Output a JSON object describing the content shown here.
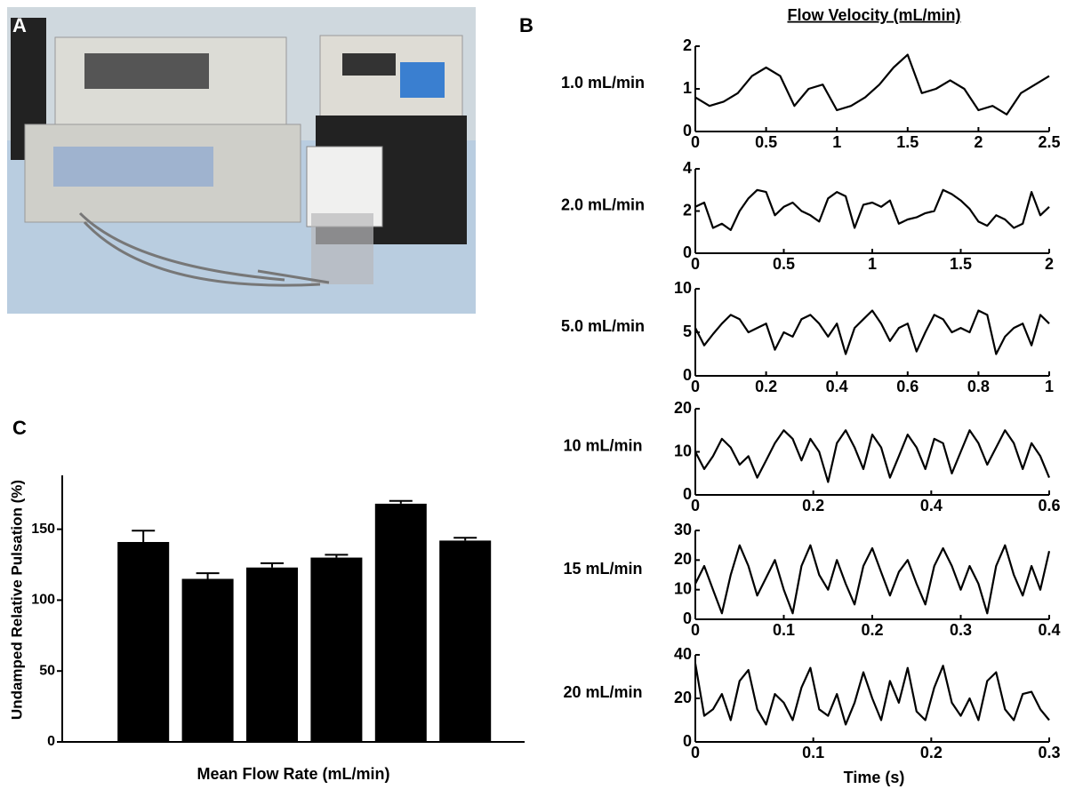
{
  "photo": {
    "panel": "A"
  },
  "chart_data": [
    {
      "type": "bar",
      "panel": "C",
      "ylabel": "Undamped Relative Pulsation (%)",
      "xlabel": "Mean Flow Rate (mL/min)",
      "categories": [
        null,
        null,
        null,
        null,
        null,
        null
      ],
      "values": [
        141,
        115,
        123,
        130,
        168,
        142
      ],
      "errors": [
        8,
        4,
        3,
        2,
        2,
        2
      ],
      "color": "#000000",
      "ylim": [
        0,
        188
      ],
      "yticks": [
        0,
        50,
        100,
        150
      ]
    },
    {
      "type": "line",
      "panel": "B",
      "title": "Flow Velocity (mL/min)",
      "ylabel": "1.0 mL/min",
      "color": "#000000",
      "x": [
        0,
        0.1,
        0.2,
        0.3,
        0.4,
        0.5,
        0.6,
        0.7,
        0.8,
        0.9,
        1,
        1.1,
        1.2,
        1.3,
        1.4,
        1.5,
        1.6,
        1.7,
        1.8,
        1.9,
        2,
        2.1,
        2.2,
        2.3,
        2.4,
        2.5
      ],
      "values": [
        0.8,
        0.6,
        0.7,
        0.9,
        1.3,
        1.5,
        1.3,
        0.6,
        1.0,
        1.1,
        0.5,
        0.6,
        0.8,
        1.1,
        1.5,
        1.8,
        0.9,
        1.0,
        1.2,
        1.0,
        0.5,
        0.6,
        0.4,
        0.9,
        1.1,
        1.3
      ],
      "xlim": [
        0,
        2.5
      ],
      "xticks": [
        0,
        0.5,
        1,
        1.5,
        2,
        2.5
      ],
      "ylim": [
        0,
        2
      ],
      "yticks": [
        0,
        1,
        2
      ]
    },
    {
      "type": "line",
      "ylabel": "2.0 mL/min",
      "color": "#000000",
      "x": [
        0,
        0.05,
        0.1,
        0.15,
        0.2,
        0.25,
        0.3,
        0.35,
        0.4,
        0.45,
        0.5,
        0.55,
        0.6,
        0.65,
        0.7,
        0.75,
        0.8,
        0.85,
        0.9,
        0.95,
        1,
        1.05,
        1.1,
        1.15,
        1.2,
        1.25,
        1.3,
        1.35,
        1.4,
        1.45,
        1.5,
        1.55,
        1.6,
        1.65,
        1.7,
        1.75,
        1.8,
        1.85,
        1.9,
        1.95,
        2
      ],
      "values": [
        2.2,
        2.4,
        1.2,
        1.4,
        1.1,
        2.0,
        2.6,
        3.0,
        2.9,
        1.8,
        2.2,
        2.4,
        2.0,
        1.8,
        1.5,
        2.6,
        2.9,
        2.7,
        1.2,
        2.3,
        2.4,
        2.2,
        2.5,
        1.4,
        1.6,
        1.7,
        1.9,
        2.0,
        3.0,
        2.8,
        2.5,
        2.1,
        1.5,
        1.3,
        1.8,
        1.6,
        1.2,
        1.4,
        2.9,
        1.8,
        2.2
      ],
      "xlim": [
        0,
        2
      ],
      "xticks": [
        0,
        0.5,
        1,
        1.5,
        2
      ],
      "ylim": [
        0,
        4
      ],
      "yticks": [
        0,
        2,
        4
      ]
    },
    {
      "type": "line",
      "ylabel": "5.0 mL/min",
      "color": "#000000",
      "x": [
        0,
        0.025,
        0.05,
        0.075,
        0.1,
        0.125,
        0.15,
        0.175,
        0.2,
        0.225,
        0.25,
        0.275,
        0.3,
        0.325,
        0.35,
        0.375,
        0.4,
        0.425,
        0.45,
        0.475,
        0.5,
        0.525,
        0.55,
        0.575,
        0.6,
        0.625,
        0.65,
        0.675,
        0.7,
        0.725,
        0.75,
        0.775,
        0.8,
        0.825,
        0.85,
        0.875,
        0.9,
        0.925,
        0.95,
        0.975,
        1
      ],
      "values": [
        5.5,
        3.5,
        4.8,
        6.0,
        7.0,
        6.5,
        5.0,
        5.5,
        6.0,
        3.0,
        5.0,
        4.5,
        6.5,
        7.0,
        6.0,
        4.5,
        6.0,
        2.5,
        5.5,
        6.5,
        7.5,
        6.0,
        4.0,
        5.5,
        6.0,
        2.8,
        5.0,
        7.0,
        6.5,
        5.0,
        5.5,
        5.0,
        7.5,
        7.0,
        2.5,
        4.5,
        5.5,
        6.0,
        3.5,
        7.0,
        6.0
      ],
      "xlim": [
        0,
        1
      ],
      "xticks": [
        0,
        0.2,
        0.4,
        0.6,
        0.8,
        1
      ],
      "ylim": [
        0,
        10
      ],
      "yticks": [
        0,
        5,
        10
      ]
    },
    {
      "type": "line",
      "ylabel": "10 mL/min",
      "color": "#000000",
      "x": [
        0,
        0.015,
        0.03,
        0.045,
        0.06,
        0.075,
        0.09,
        0.105,
        0.12,
        0.135,
        0.15,
        0.165,
        0.18,
        0.195,
        0.21,
        0.225,
        0.24,
        0.255,
        0.27,
        0.285,
        0.3,
        0.315,
        0.33,
        0.345,
        0.36,
        0.375,
        0.39,
        0.405,
        0.42,
        0.435,
        0.45,
        0.465,
        0.48,
        0.495,
        0.51,
        0.525,
        0.54,
        0.555,
        0.57,
        0.585,
        0.6
      ],
      "values": [
        10,
        6,
        9,
        13,
        11,
        7,
        9,
        4,
        8,
        12,
        15,
        13,
        8,
        13,
        10,
        3,
        12,
        15,
        11,
        6,
        14,
        11,
        4,
        9,
        14,
        11,
        6,
        13,
        12,
        5,
        10,
        15,
        12,
        7,
        11,
        15,
        12,
        6,
        12,
        9,
        4
      ],
      "xlim": [
        0,
        0.6
      ],
      "xticks": [
        0,
        0.2,
        0.4,
        0.6
      ],
      "ylim": [
        0,
        20
      ],
      "yticks": [
        0,
        10,
        20
      ]
    },
    {
      "type": "line",
      "ylabel": "15 mL/min",
      "color": "#000000",
      "x": [
        0,
        0.01,
        0.02,
        0.03,
        0.04,
        0.05,
        0.06,
        0.07,
        0.08,
        0.09,
        0.1,
        0.11,
        0.12,
        0.13,
        0.14,
        0.15,
        0.16,
        0.17,
        0.18,
        0.19,
        0.2,
        0.21,
        0.22,
        0.23,
        0.24,
        0.25,
        0.26,
        0.27,
        0.28,
        0.29,
        0.3,
        0.31,
        0.32,
        0.33,
        0.34,
        0.35,
        0.36,
        0.37,
        0.38,
        0.39,
        0.4
      ],
      "values": [
        12,
        18,
        10,
        2,
        15,
        25,
        18,
        8,
        14,
        20,
        10,
        2,
        18,
        25,
        15,
        10,
        20,
        12,
        5,
        18,
        24,
        16,
        8,
        16,
        20,
        12,
        5,
        18,
        24,
        18,
        10,
        18,
        12,
        2,
        18,
        25,
        15,
        8,
        18,
        10,
        23
      ],
      "xlim": [
        0,
        0.4
      ],
      "xticks": [
        0,
        0.1,
        0.2,
        0.3,
        0.4
      ],
      "ylim": [
        0,
        30
      ],
      "yticks": [
        0,
        10,
        20,
        30
      ]
    },
    {
      "type": "line",
      "ylabel": "20 mL/min",
      "xlabel": "Time (s)",
      "color": "#000000",
      "x": [
        0,
        0.0075,
        0.015,
        0.0225,
        0.03,
        0.0375,
        0.045,
        0.0525,
        0.06,
        0.0675,
        0.075,
        0.0825,
        0.09,
        0.0975,
        0.105,
        0.1125,
        0.12,
        0.1275,
        0.135,
        0.1425,
        0.15,
        0.1575,
        0.165,
        0.1725,
        0.18,
        0.1875,
        0.195,
        0.2025,
        0.21,
        0.2175,
        0.225,
        0.2325,
        0.24,
        0.2475,
        0.255,
        0.2625,
        0.27,
        0.2775,
        0.285,
        0.2925,
        0.3
      ],
      "values": [
        36,
        12,
        15,
        22,
        10,
        28,
        33,
        15,
        8,
        22,
        18,
        10,
        25,
        34,
        15,
        12,
        22,
        8,
        18,
        32,
        20,
        10,
        28,
        18,
        34,
        14,
        10,
        25,
        35,
        18,
        12,
        20,
        10,
        28,
        32,
        15,
        10,
        22,
        23,
        15,
        10
      ],
      "xlim": [
        0,
        0.3
      ],
      "xticks": [
        0,
        0.1,
        0.2,
        0.3
      ],
      "ylim": [
        0,
        40
      ],
      "yticks": [
        0,
        20,
        40
      ]
    }
  ]
}
